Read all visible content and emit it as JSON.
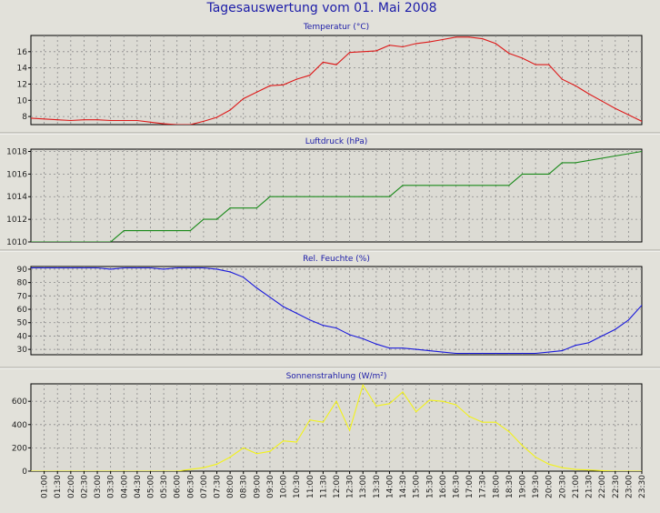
{
  "title": "Tagesauswertung vom 01. Mai 2008",
  "colors": {
    "background": "#e2e1da",
    "plot_background": "#dcdbd4",
    "grid": "#8a8a8a",
    "title": "#1c1ca8",
    "temperature": "#dd1a1a",
    "pressure": "#1a8a1a",
    "humidity": "#1a1adb",
    "radiation": "#f2f21a"
  },
  "x_tick_labels": [
    "01:00",
    "01:30",
    "02:00",
    "02:30",
    "03:00",
    "03:30",
    "04:00",
    "04:30",
    "05:00",
    "05:30",
    "06:00",
    "06:30",
    "07:00",
    "07:30",
    "08:00",
    "08:30",
    "09:00",
    "09:30",
    "10:00",
    "10:30",
    "11:00",
    "11:30",
    "12:00",
    "12:30",
    "13:00",
    "13:30",
    "14:00",
    "14:30",
    "15:00",
    "15:30",
    "16:00",
    "16:30",
    "17:00",
    "17:30",
    "18:00",
    "18:30",
    "19:00",
    "19:30",
    "20:00",
    "20:30",
    "21:00",
    "21:30",
    "22:00",
    "22:30",
    "23:00",
    "23:30"
  ],
  "chart_data": [
    {
      "type": "line",
      "title": "Temperatur (°C)",
      "color_key": "temperature",
      "ylim": [
        7,
        18
      ],
      "yticks": [
        8,
        10,
        12,
        14,
        16
      ],
      "grid": true,
      "x": [
        "00:30",
        "01:00",
        "01:30",
        "02:00",
        "02:30",
        "03:00",
        "03:30",
        "04:00",
        "04:30",
        "05:00",
        "05:30",
        "06:00",
        "06:30",
        "07:00",
        "07:30",
        "08:00",
        "08:30",
        "09:00",
        "09:30",
        "10:00",
        "10:30",
        "11:00",
        "11:30",
        "12:00",
        "12:30",
        "13:00",
        "13:30",
        "14:00",
        "14:30",
        "15:00",
        "15:30",
        "16:00",
        "16:30",
        "17:00",
        "17:30",
        "18:00",
        "18:30",
        "19:00",
        "19:30",
        "20:00",
        "20:30",
        "21:00",
        "21:30",
        "22:00",
        "22:30",
        "23:00",
        "23:30"
      ],
      "values": [
        7.8,
        7.7,
        7.6,
        7.5,
        7.6,
        7.6,
        7.5,
        7.5,
        7.5,
        7.3,
        7.1,
        7.0,
        7.0,
        7.4,
        7.9,
        8.8,
        10.2,
        11.0,
        11.8,
        11.9,
        12.6,
        13.1,
        14.7,
        14.4,
        15.9,
        16.0,
        16.1,
        16.8,
        16.6,
        17.0,
        17.2,
        17.5,
        17.8,
        17.8,
        17.6,
        17.0,
        15.8,
        15.2,
        14.4,
        14.4,
        12.6,
        11.8,
        10.8,
        9.9,
        9.0,
        8.2,
        7.4
      ]
    },
    {
      "type": "line",
      "title": "Luftdruck (hPa)",
      "color_key": "pressure",
      "ylim": [
        1010,
        1018.2
      ],
      "yticks": [
        1010,
        1012,
        1014,
        1016,
        1018
      ],
      "grid": true,
      "x": [
        "00:30",
        "03:30",
        "04:00",
        "06:30",
        "07:00",
        "07:30",
        "08:00",
        "08:30",
        "09:00",
        "09:30",
        "10:00",
        "12:00",
        "13:00",
        "14:00",
        "14:30",
        "17:00",
        "18:00",
        "18:30",
        "19:00",
        "19:30",
        "20:00",
        "20:30",
        "21:00",
        "23:30"
      ],
      "values": [
        1010,
        1010,
        1011,
        1011,
        1012,
        1012,
        1013,
        1013,
        1013,
        1014,
        1014,
        1014,
        1014,
        1014,
        1015,
        1015,
        1015,
        1015,
        1016,
        1016,
        1016,
        1017,
        1017,
        1018
      ]
    },
    {
      "type": "line",
      "title": "Rel. Feuchte (%)",
      "color_key": "humidity",
      "ylim": [
        26,
        92
      ],
      "yticks": [
        30,
        40,
        50,
        60,
        70,
        80,
        90
      ],
      "grid": true,
      "x": [
        "00:30",
        "01:00",
        "01:30",
        "02:00",
        "02:30",
        "03:00",
        "03:30",
        "04:00",
        "04:30",
        "05:00",
        "05:30",
        "06:00",
        "06:30",
        "07:00",
        "07:30",
        "08:00",
        "08:30",
        "09:00",
        "09:30",
        "10:00",
        "10:30",
        "11:00",
        "11:30",
        "12:00",
        "12:30",
        "13:00",
        "13:30",
        "14:00",
        "14:30",
        "15:00",
        "15:30",
        "16:00",
        "16:30",
        "17:00",
        "17:30",
        "18:00",
        "18:30",
        "19:00",
        "19:30",
        "20:00",
        "20:30",
        "21:00",
        "21:30",
        "22:00",
        "22:30",
        "23:00",
        "23:30"
      ],
      "values": [
        91,
        91,
        91,
        91,
        91,
        91,
        90,
        91,
        91,
        91,
        90,
        91,
        91,
        91,
        90,
        88,
        84,
        76,
        69,
        62,
        57,
        52,
        48,
        46,
        41,
        38,
        34,
        31,
        31,
        30,
        29,
        28,
        27,
        27,
        27,
        27,
        27,
        27,
        27,
        28,
        29,
        33,
        35,
        40,
        45,
        52,
        63
      ]
    },
    {
      "type": "line",
      "title": "Sonnenstrahlung (W/m²)",
      "color_key": "radiation",
      "ylim": [
        0,
        750
      ],
      "yticks": [
        0,
        200,
        400,
        600
      ],
      "grid": true,
      "x": [
        "00:30",
        "01:00",
        "01:30",
        "02:00",
        "02:30",
        "03:00",
        "03:30",
        "04:00",
        "04:30",
        "05:00",
        "05:30",
        "06:00",
        "06:30",
        "07:00",
        "07:30",
        "08:00",
        "08:30",
        "09:00",
        "09:30",
        "10:00",
        "10:30",
        "11:00",
        "11:30",
        "12:00",
        "12:30",
        "13:00",
        "13:30",
        "14:00",
        "14:30",
        "15:00",
        "15:30",
        "16:00",
        "16:30",
        "17:00",
        "17:30",
        "18:00",
        "18:30",
        "19:00",
        "19:30",
        "20:00",
        "20:30",
        "21:00",
        "21:30",
        "22:00",
        "22:30",
        "23:00",
        "23:30"
      ],
      "values": [
        0,
        0,
        0,
        0,
        0,
        0,
        0,
        0,
        0,
        0,
        0,
        0,
        15,
        30,
        60,
        120,
        200,
        150,
        170,
        260,
        250,
        440,
        420,
        600,
        350,
        740,
        560,
        580,
        680,
        510,
        610,
        600,
        570,
        470,
        420,
        420,
        340,
        220,
        120,
        60,
        30,
        15,
        10,
        5,
        0,
        0,
        0
      ]
    }
  ]
}
